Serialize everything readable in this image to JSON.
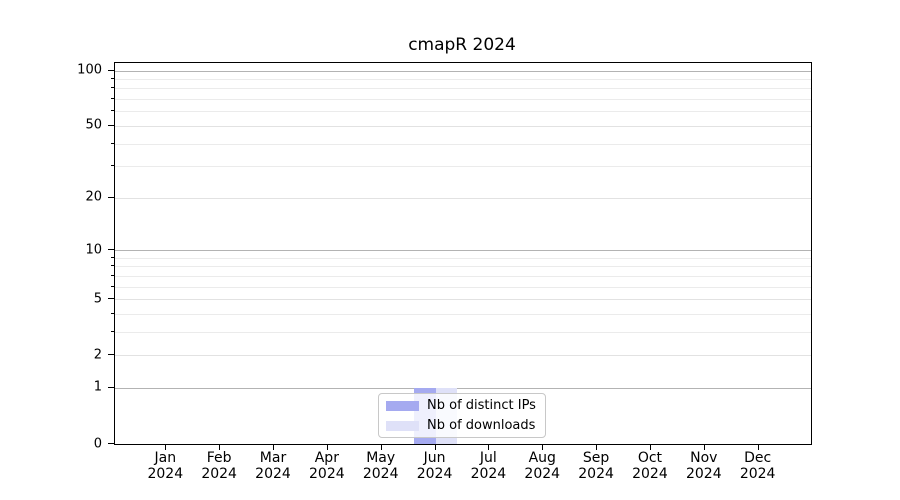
{
  "chart_data": {
    "type": "bar",
    "title": "cmapR 2024",
    "categories": [
      "Jan 2024",
      "Feb 2024",
      "Mar 2024",
      "Apr 2024",
      "May 2024",
      "Jun 2024",
      "Jul 2024",
      "Aug 2024",
      "Sep 2024",
      "Oct 2024",
      "Nov 2024",
      "Dec 2024"
    ],
    "series": [
      {
        "name": "Nb of distinct IPs",
        "color": "#a5aaf0",
        "values": [
          0,
          0,
          0,
          0,
          0,
          1,
          0,
          0,
          0,
          0,
          0,
          0
        ]
      },
      {
        "name": "Nb of downloads",
        "color": "#dfe1f8",
        "values": [
          0,
          0,
          0,
          0,
          0,
          1,
          0,
          0,
          0,
          0,
          0,
          0
        ]
      }
    ],
    "xlabel": "",
    "ylabel": "",
    "y_scale": "log1p",
    "ylim": [
      0,
      110
    ],
    "y_ticks": [
      0,
      1,
      2,
      5,
      10,
      20,
      50,
      100
    ],
    "y_decade_ticks": [
      1,
      10,
      100
    ],
    "y_minor_ticks": [
      3,
      4,
      6,
      7,
      8,
      9,
      30,
      40,
      60,
      70,
      80,
      90
    ],
    "grid": true,
    "legend_position": "lower center"
  },
  "style": {
    "axis_color": "#000000",
    "grid_decade_color": "#b3b3b3",
    "grid_major_color": "#e2e2e2",
    "grid_minor_color": "#ebebeb",
    "background": "#ffffff",
    "legend_border": "#c8c8c8"
  }
}
